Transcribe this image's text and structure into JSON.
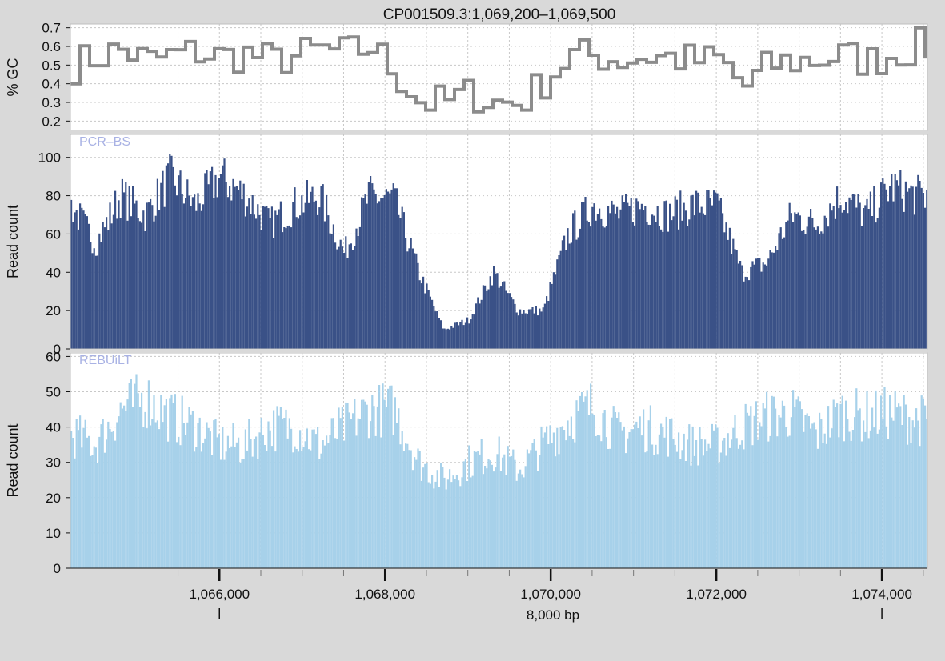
{
  "title": "CP001509.3:1,069,200–1,069,500",
  "scale_label": "8,000 bp",
  "colors": {
    "background": "#d9d9d9",
    "panel": "#ffffff",
    "gc_line": "#8c8c8c",
    "pcr_bs": "#3a5187",
    "rebuilt": "#a7d1ea",
    "track_name": "#a9b2e4"
  },
  "chart_data": [
    {
      "type": "line",
      "panel": "gc",
      "ylabel": "% GC",
      "ylim": [
        0.15,
        0.72
      ],
      "yticks": [
        0.2,
        0.3,
        0.4,
        0.5,
        0.6,
        0.7
      ],
      "ytick_labels": [
        "0.2",
        "0.3",
        "0.4",
        "0.5",
        "0.6",
        "0.7"
      ],
      "xlim": [
        1064200,
        1074550
      ],
      "x": [
        1064200,
        1064500,
        1064800,
        1065100,
        1065400,
        1065700,
        1066000,
        1066300,
        1066600,
        1066900,
        1067200,
        1067500,
        1067800,
        1068100,
        1068400,
        1068700,
        1069000,
        1069300,
        1069600,
        1069900,
        1070200,
        1070500,
        1070800,
        1071100,
        1071400,
        1071700,
        1072000,
        1072300,
        1072600,
        1072900,
        1073200,
        1073500,
        1073800,
        1074100,
        1074400
      ],
      "series": [
        {
          "values": [
            0.5,
            0.55,
            0.58,
            0.52,
            0.55,
            0.57,
            0.54,
            0.56,
            0.52,
            0.55,
            0.58,
            0.56,
            0.6,
            0.45,
            0.3,
            0.3,
            0.35,
            0.3,
            0.3,
            0.42,
            0.55,
            0.55,
            0.53,
            0.55,
            0.54,
            0.52,
            0.53,
            0.38,
            0.5,
            0.52,
            0.53,
            0.55,
            0.52,
            0.56,
            0.6
          ]
        }
      ],
      "grid": true
    },
    {
      "type": "bar",
      "panel": "pcr_bs",
      "track_name": "PCR–BS",
      "ylabel": "Read count",
      "ylim": [
        0,
        112
      ],
      "yticks": [
        0,
        20,
        40,
        60,
        80,
        100
      ],
      "ytick_labels": [
        "0",
        "20",
        "40",
        "60",
        "80",
        "100"
      ],
      "xlim": [
        1064200,
        1074550
      ],
      "x": [
        1064200,
        1064500,
        1064800,
        1065100,
        1065400,
        1065700,
        1066000,
        1066300,
        1066600,
        1066900,
        1067200,
        1067500,
        1067800,
        1068100,
        1068400,
        1068700,
        1069000,
        1069300,
        1069600,
        1069900,
        1070200,
        1070500,
        1070800,
        1071100,
        1071400,
        1071700,
        1072000,
        1072300,
        1072600,
        1072900,
        1073200,
        1073500,
        1073800,
        1074100,
        1074400
      ],
      "series": [
        {
          "name": "PCR–BS",
          "values": [
            75,
            55,
            80,
            70,
            90,
            75,
            90,
            80,
            65,
            75,
            80,
            50,
            80,
            78,
            40,
            10,
            15,
            40,
            20,
            20,
            60,
            75,
            70,
            75,
            70,
            75,
            75,
            40,
            45,
            70,
            65,
            80,
            70,
            85,
            80
          ]
        }
      ],
      "grid": true
    },
    {
      "type": "bar",
      "panel": "rebuilt",
      "track_name": "REBUiLT",
      "ylabel": "Read count",
      "ylim": [
        0,
        61
      ],
      "yticks": [
        0,
        10,
        20,
        30,
        40,
        50,
        60
      ],
      "ytick_labels": [
        "0",
        "10",
        "20",
        "30",
        "40",
        "50",
        "60"
      ],
      "xlim": [
        1064200,
        1074550
      ],
      "x": [
        1064200,
        1064500,
        1064800,
        1065100,
        1065400,
        1065700,
        1066000,
        1066300,
        1066600,
        1066900,
        1067200,
        1067500,
        1067800,
        1068100,
        1068400,
        1068700,
        1069000,
        1069300,
        1069600,
        1069900,
        1070200,
        1070500,
        1070800,
        1071100,
        1071400,
        1071700,
        1072000,
        1072300,
        1072600,
        1072900,
        1073200,
        1073500,
        1073800,
        1074100,
        1074400
      ],
      "series": [
        {
          "name": "REBUiLT",
          "values": [
            38,
            35,
            45,
            48,
            43,
            40,
            35,
            35,
            40,
            40,
            35,
            40,
            45,
            45,
            30,
            25,
            30,
            33,
            28,
            35,
            42,
            46,
            38,
            40,
            38,
            35,
            35,
            40,
            43,
            44,
            38,
            44,
            43,
            44,
            42
          ]
        }
      ],
      "grid": true
    }
  ],
  "x_axis": {
    "ticks": [
      1066000,
      1068000,
      1070000,
      1072000,
      1074000
    ],
    "tick_labels": [
      "1,066,000",
      "1,068,000",
      "1,070,000",
      "1,072,000",
      "1,074,000"
    ],
    "minor_ticks": [
      1065500,
      1066500,
      1067000,
      1067500,
      1068500,
      1069000,
      1069500,
      1070500,
      1071000,
      1071500,
      1072500,
      1073000,
      1073500,
      1074500
    ]
  }
}
